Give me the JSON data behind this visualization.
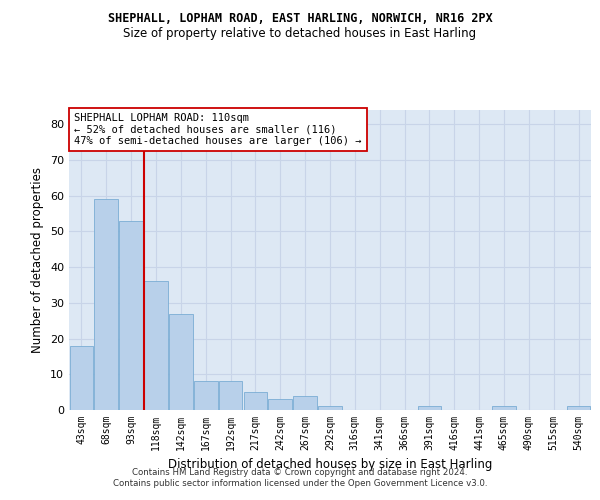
{
  "title_line1": "SHEPHALL, LOPHAM ROAD, EAST HARLING, NORWICH, NR16 2PX",
  "title_line2": "Size of property relative to detached houses in East Harling",
  "xlabel": "Distribution of detached houses by size in East Harling",
  "ylabel": "Number of detached properties",
  "bar_color": "#b8d0ea",
  "bar_edge_color": "#7aadd4",
  "grid_color": "#c8d4e8",
  "background_color": "#dde8f4",
  "vline_color": "#cc0000",
  "annotation_text": "SHEPHALL LOPHAM ROAD: 110sqm\n← 52% of detached houses are smaller (116)\n47% of semi-detached houses are larger (106) →",
  "annotation_box_color": "#ffffff",
  "annotation_box_edge": "#cc0000",
  "categories": [
    "43sqm",
    "68sqm",
    "93sqm",
    "118sqm",
    "142sqm",
    "167sqm",
    "192sqm",
    "217sqm",
    "242sqm",
    "267sqm",
    "292sqm",
    "316sqm",
    "341sqm",
    "366sqm",
    "391sqm",
    "416sqm",
    "441sqm",
    "465sqm",
    "490sqm",
    "515sqm",
    "540sqm"
  ],
  "values": [
    18,
    59,
    53,
    36,
    27,
    8,
    8,
    5,
    3,
    4,
    1,
    0,
    0,
    0,
    1,
    0,
    0,
    1,
    0,
    0,
    1
  ],
  "ylim": [
    0,
    84
  ],
  "yticks": [
    0,
    10,
    20,
    30,
    40,
    50,
    60,
    70,
    80
  ],
  "vline_xindex": 2.5,
  "footnote": "Contains HM Land Registry data © Crown copyright and database right 2024.\nContains public sector information licensed under the Open Government Licence v3.0.",
  "figsize": [
    6.0,
    5.0
  ],
  "dpi": 100
}
